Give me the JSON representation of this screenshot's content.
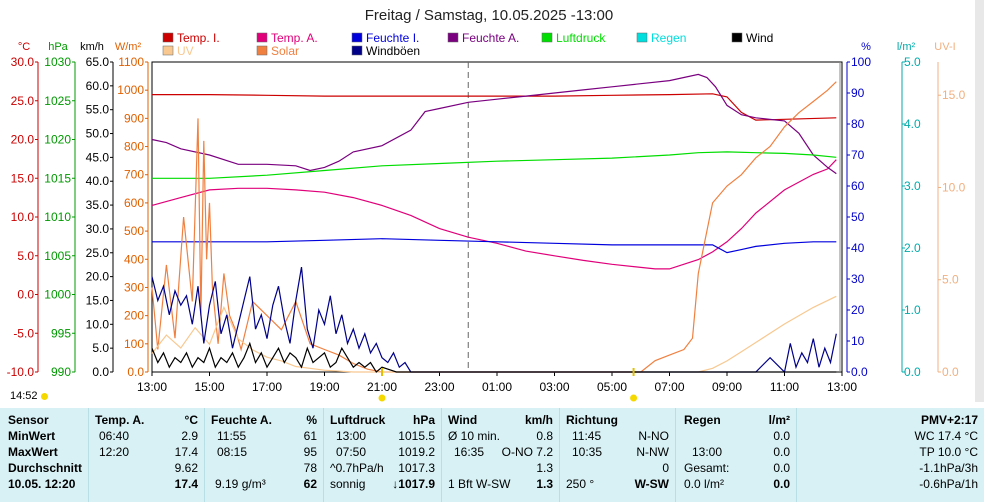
{
  "chart_data": {
    "type": "line",
    "title": "Freitag / Samstag, 10.05.2025  -13:00",
    "x_ticks": [
      "13:00",
      "15:00",
      "17:00",
      "19:00",
      "21:00",
      "23:00",
      "01:00",
      "03:00",
      "05:00",
      "07:00",
      "09:00",
      "11:00",
      "13:00"
    ],
    "axes": {
      "temp": {
        "unit": "°C",
        "min": -10,
        "max": 30,
        "ticks": [
          "30.0",
          "25.0",
          "20.0",
          "15.0",
          "10.0",
          "5.0",
          "0.0",
          "-5.0",
          "-10.0"
        ],
        "color": "#cc0000"
      },
      "pressure": {
        "unit": "hPa",
        "min": 990,
        "max": 1030,
        "ticks": [
          "1030",
          "1025",
          "1020",
          "1015",
          "1010",
          "1005",
          "1000",
          "995",
          "990"
        ],
        "color": "#009900"
      },
      "wind": {
        "unit": "km/h",
        "min": 0,
        "max": 65,
        "ticks": [
          "65.0",
          "60.0",
          "55.0",
          "50.0",
          "45.0",
          "40.0",
          "35.0",
          "30.0",
          "25.0",
          "20.0",
          "15.0",
          "10.0",
          "5.0",
          "0.0"
        ],
        "color": "#000000"
      },
      "solar": {
        "unit": "W/m²",
        "min": 0,
        "max": 1100,
        "ticks": [
          "1100",
          "1000",
          "900",
          "800",
          "700",
          "600",
          "500",
          "400",
          "300",
          "200",
          "100",
          "0.0"
        ],
        "color": "#e06000"
      },
      "humidity": {
        "unit": "%",
        "min": 0,
        "max": 100,
        "ticks": [
          "100",
          "90",
          "80",
          "70",
          "60",
          "50",
          "40",
          "30",
          "20",
          "10",
          "0.0"
        ],
        "color": "#0000cc"
      },
      "rain": {
        "unit": "l/m²",
        "min": 0,
        "max": 5,
        "ticks": [
          "5.0",
          "4.0",
          "3.0",
          "2.0",
          "1.0",
          "0.0"
        ],
        "color": "#00aaaa"
      },
      "uv": {
        "unit": "UV-I",
        "min": 0,
        "max": 16.8,
        "ticks": [
          "15.0",
          "10.0",
          "5.0",
          "0.0"
        ],
        "color": "#f0b080"
      }
    },
    "legend": [
      {
        "name": "Temp. I.",
        "color": "#cc0000"
      },
      {
        "name": "Temp. A.",
        "color": "#e0007a"
      },
      {
        "name": "Feuchte I.",
        "color": "#0000dd"
      },
      {
        "name": "Feuchte A.",
        "color": "#7a0080"
      },
      {
        "name": "Luftdruck",
        "color": "#00dd00"
      },
      {
        "name": "Regen",
        "color": "#00dddd"
      },
      {
        "name": "Wind",
        "color": "#000000"
      },
      {
        "name": "UV",
        "color": "#f8c890"
      },
      {
        "name": "Solar",
        "color": "#f08040"
      },
      {
        "name": "Windböen",
        "color": "#000088"
      }
    ],
    "series": [
      {
        "name": "Temp. I.",
        "axis": "temp",
        "color": "#cc0000",
        "x": [
          0,
          2,
          4,
          6,
          8,
          10,
          12,
          14,
          16,
          18,
          19.5,
          20,
          20.5,
          21,
          22,
          23.8
        ],
        "y": [
          25.8,
          25.8,
          25.7,
          25.6,
          25.6,
          25.6,
          25.6,
          25.6,
          25.7,
          25.8,
          25.9,
          25.5,
          23.5,
          22.5,
          22.6,
          22.8
        ]
      },
      {
        "name": "Temp. A.",
        "axis": "temp",
        "color": "#e0007a",
        "x": [
          0,
          1,
          2,
          3,
          4,
          5,
          6,
          7,
          8,
          9,
          10,
          11,
          12,
          13,
          14,
          15,
          16,
          17,
          17.5,
          18,
          19,
          19.5,
          20,
          20.5,
          21,
          22,
          23,
          23.5,
          23.8
        ],
        "y": [
          11.5,
          12.5,
          13.5,
          13.7,
          13.7,
          13.5,
          13.2,
          12.5,
          11.5,
          10.2,
          8.5,
          7.4,
          6.6,
          5.6,
          5.0,
          4.4,
          3.9,
          3.5,
          3.3,
          3.3,
          4.5,
          5.5,
          6.8,
          8.5,
          10.5,
          13.5,
          15.5,
          16.2,
          17.4
        ]
      },
      {
        "name": "Feuchte I.",
        "axis": "humidity",
        "color": "#0000dd",
        "x": [
          0,
          4,
          6,
          8,
          10,
          12,
          14,
          16,
          18,
          19.5,
          20,
          20.5,
          21,
          22,
          23,
          23.8
        ],
        "y": [
          42,
          42,
          42.5,
          43,
          42.5,
          42,
          41.5,
          41,
          41,
          41,
          38.5,
          39.5,
          40.5,
          41.5,
          42,
          42
        ]
      },
      {
        "name": "Feuchte A.",
        "axis": "humidity",
        "color": "#7a0080",
        "x": [
          0,
          0.5,
          1,
          2,
          3,
          4,
          5,
          5.5,
          6,
          6.5,
          7,
          8,
          9,
          9.5,
          10,
          11,
          12,
          13,
          14,
          15,
          16,
          17,
          18,
          18.5,
          19,
          19.3,
          19.6,
          20,
          20.5,
          21,
          22,
          22.5,
          23,
          23.5,
          23.8
        ],
        "y": [
          75,
          74,
          72,
          70,
          67,
          67,
          66.5,
          65,
          66,
          68,
          71,
          73,
          78,
          84,
          85,
          87,
          88,
          89,
          90,
          91,
          92,
          93,
          94,
          95,
          96,
          95,
          92,
          86,
          83,
          82,
          81,
          77,
          70,
          66,
          64
        ]
      },
      {
        "name": "Luftdruck",
        "axis": "pressure",
        "color": "#00dd00",
        "x": [
          0,
          2,
          4,
          6,
          8,
          10,
          12,
          14,
          16,
          18,
          19,
          20,
          21,
          22,
          23,
          23.8
        ],
        "y": [
          1015.0,
          1015.0,
          1015.4,
          1016.0,
          1016.6,
          1016.9,
          1017.2,
          1017.4,
          1017.6,
          1018.0,
          1018.3,
          1018.4,
          1018.3,
          1018.2,
          1018.0,
          1017.7
        ]
      },
      {
        "name": "Solar",
        "axis": "solar",
        "color": "#f08040",
        "x": [
          0,
          0.2,
          0.5,
          0.8,
          1.1,
          1.4,
          1.6,
          1.7,
          1.8,
          1.9,
          2.0,
          2.1,
          2.3,
          2.5,
          2.7,
          2.9,
          3.1,
          3.5,
          4,
          4.5,
          5,
          5.5,
          6,
          6.5,
          7,
          7.5,
          8,
          17,
          17.5,
          18,
          18.5,
          18.8,
          19,
          19.5,
          20,
          20.5,
          21,
          21.5,
          22,
          22.5,
          23,
          23.5,
          23.8
        ],
        "y": [
          300,
          80,
          380,
          120,
          550,
          250,
          900,
          200,
          820,
          400,
          600,
          300,
          100,
          350,
          200,
          150,
          80,
          250,
          200,
          150,
          250,
          100,
          80,
          60,
          30,
          10,
          0,
          0,
          40,
          60,
          80,
          120,
          350,
          600,
          660,
          700,
          760,
          800,
          870,
          920,
          960,
          1000,
          1030
        ]
      },
      {
        "name": "UV",
        "axis": "uv",
        "color": "#f8c890",
        "x": [
          0,
          0.5,
          1,
          1.5,
          2,
          2.5,
          3,
          3.5,
          4,
          4.5,
          5,
          6,
          7,
          8,
          19,
          19.5,
          20,
          20.5,
          21,
          22,
          23,
          23.8
        ],
        "y": [
          1.0,
          2.0,
          1.3,
          2.4,
          1.5,
          3.5,
          1.8,
          1.2,
          0.8,
          0.6,
          0.3,
          0.1,
          0,
          0,
          0,
          0.2,
          0.6,
          1.1,
          1.6,
          2.6,
          3.5,
          4.1
        ]
      },
      {
        "name": "Windböen",
        "axis": "wind",
        "color": "#000088",
        "x": [
          0,
          0.2,
          0.4,
          0.6,
          0.8,
          1,
          1.2,
          1.4,
          1.6,
          1.8,
          2,
          2.2,
          2.4,
          2.6,
          2.8,
          3,
          3.2,
          3.4,
          3.6,
          3.8,
          4,
          4.2,
          4.4,
          4.6,
          4.8,
          5,
          5.2,
          5.4,
          5.6,
          5.8,
          6,
          6.2,
          6.4,
          6.6,
          6.8,
          7,
          7.2,
          7.4,
          7.6,
          7.8,
          8,
          8.2,
          8.4,
          8.6,
          8.8,
          9,
          9.5,
          10,
          21,
          21.5,
          22,
          22.2,
          22.4,
          22.6,
          22.8,
          23,
          23.2,
          23.4,
          23.6,
          23.8
        ],
        "y": [
          20,
          15,
          18,
          12,
          17,
          14,
          16,
          10,
          18,
          6,
          14,
          19,
          8,
          12,
          5,
          10,
          15,
          20,
          9,
          12,
          7,
          14,
          18,
          11,
          6,
          15,
          22,
          9,
          5,
          13,
          10,
          16,
          8,
          12,
          6,
          9,
          5,
          8,
          4,
          6,
          3,
          2,
          4,
          1,
          2,
          0,
          0,
          0,
          0,
          3,
          0,
          6,
          1,
          4,
          2,
          7,
          1,
          5,
          2,
          8
        ]
      },
      {
        "name": "Wind",
        "axis": "wind",
        "color": "#000000",
        "x": [
          0,
          0.2,
          0.4,
          0.6,
          0.8,
          1,
          1.2,
          1.4,
          1.6,
          1.8,
          2,
          2.2,
          2.4,
          2.6,
          2.8,
          3,
          3.2,
          3.4,
          3.6,
          3.8,
          4,
          4.2,
          4.4,
          4.6,
          4.8,
          5,
          5.2,
          5.4,
          5.6,
          5.8,
          6,
          6.2,
          6.4,
          6.6,
          6.8,
          7,
          7.2,
          7.4,
          7.6,
          7.8,
          8,
          8.5,
          9,
          23.8
        ],
        "y": [
          5,
          2,
          4,
          1,
          3,
          2,
          4,
          1,
          3,
          2,
          5,
          1,
          3,
          2,
          4,
          1,
          3,
          6,
          2,
          4,
          1,
          3,
          5,
          2,
          4,
          3,
          1,
          5,
          2,
          3,
          4,
          1,
          2,
          5,
          3,
          1,
          2,
          1,
          2,
          0,
          1,
          0,
          0,
          0
        ]
      }
    ]
  },
  "header": {
    "time_readout": "14:52"
  },
  "table": {
    "sensor": {
      "title": "Sensor",
      "min": "MinWert",
      "max": "MaxWert",
      "avg": "Durchschnitt",
      "now": "10.05. 12:20"
    },
    "temp": {
      "title": "Temp. A.",
      "unit": "°C",
      "min_time": "06:40",
      "min_val": "2.9",
      "max_time": "12:20",
      "max_val": "17.4",
      "avg_val": "9.62",
      "now_val": "17.4"
    },
    "hum": {
      "title": "Feuchte A.",
      "unit": "%",
      "min_time": "11:55",
      "min_val": "61",
      "max_time": "08:15",
      "max_val": "95",
      "avg_val": "78",
      "now_extra": "9.19 g/m³",
      "now_val": "62"
    },
    "press": {
      "title": "Luftdruck",
      "unit": "hPa",
      "min_time": "13:00",
      "min_val": "1015.5",
      "max_time": "07:50",
      "max_val": "1019.2",
      "avg_label": "^0.7hPa/h",
      "avg_val": "1017.3",
      "now_label": "sonnig",
      "now_arrow": "↓",
      "now_val": "1017.9"
    },
    "wind": {
      "title": "Wind",
      "unit": "km/h",
      "min_label": "Ø 10 min.",
      "min_val": "0.8",
      "max_time": "16:35",
      "max_dir": "O-NO 7.2",
      "max_val": "",
      "avg_val": "1.3",
      "now_label": "1 Bft W-SW",
      "now_val": "1.3"
    },
    "dir": {
      "title": "Richtung",
      "min_time": "11:45",
      "min_val": "N-NO",
      "max_time": "10:35",
      "max_val": "N-NW",
      "avg_val": "0",
      "now_label": "250 °",
      "now_val": "W-SW"
    },
    "rain": {
      "title": "Regen",
      "unit": "l/m²",
      "min_val": "0.0",
      "max_time": "13:00",
      "max_val": "0.0",
      "avg_label": "Gesamt:",
      "avg_val": "0.0",
      "now_label": "0.0 l/m²",
      "now_val": "0.0"
    },
    "extra": {
      "l1": "PMV+2:17",
      "l2": "WC 17.4 °C",
      "l3": "TP 10.0 °C",
      "l4": "-1.1hPa/3h",
      "l5": "-0.6hPa/1h"
    }
  }
}
